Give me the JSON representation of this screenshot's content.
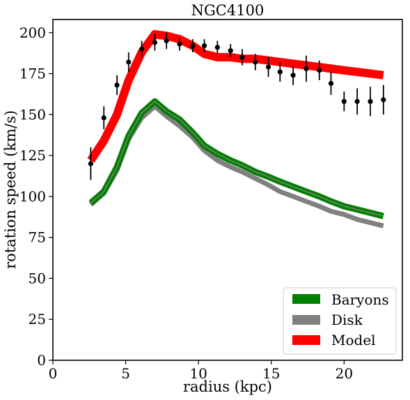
{
  "chart_data": {
    "type": "line",
    "title": "NGC4100",
    "xlabel": "radius (kpc)",
    "ylabel": "rotation speed (km/s)",
    "xlim": [
      0,
      24
    ],
    "ylim": [
      0,
      208
    ],
    "xticks": [
      0,
      5,
      10,
      15,
      20
    ],
    "yticks": [
      0,
      25,
      50,
      75,
      100,
      125,
      150,
      175,
      200
    ],
    "grid": false,
    "legend_position": "bottom-right",
    "observed": {
      "x": [
        2.6,
        3.5,
        4.4,
        5.2,
        6.1,
        7.0,
        7.8,
        8.7,
        9.6,
        10.4,
        11.3,
        12.2,
        13.0,
        13.9,
        14.8,
        15.6,
        16.5,
        17.4,
        18.3,
        19.1,
        20.0,
        20.9,
        21.8,
        22.7
      ],
      "y": [
        120,
        148,
        168,
        182,
        190,
        194,
        195,
        193,
        192,
        192,
        191,
        189,
        185,
        182,
        179,
        176,
        174,
        178,
        177,
        169,
        158,
        158,
        158,
        159
      ],
      "err": [
        10,
        7,
        6,
        6,
        5,
        5,
        5,
        4,
        4,
        4,
        4,
        4,
        5,
        5,
        6,
        6,
        6,
        8,
        6,
        7,
        6,
        8,
        9,
        9
      ]
    },
    "series": [
      {
        "name": "Baryons",
        "color": "#008000",
        "x": [
          2.6,
          3.5,
          4.4,
          5.2,
          6.1,
          7.0,
          7.8,
          8.7,
          9.6,
          10.4,
          11.3,
          12.2,
          13.0,
          13.9,
          14.8,
          15.6,
          16.5,
          17.4,
          18.3,
          19.1,
          20.0,
          20.9,
          21.8,
          22.7
        ],
        "y": [
          96,
          103,
          118,
          137,
          151,
          158,
          152,
          147,
          139,
          131,
          126,
          122,
          119,
          115,
          112,
          109,
          106,
          103,
          100,
          97,
          94,
          92,
          90,
          88
        ]
      },
      {
        "name": "Disk",
        "color": "#808080",
        "x": [
          2.6,
          3.5,
          4.4,
          5.2,
          6.1,
          7.0,
          7.8,
          8.7,
          9.6,
          10.4,
          11.3,
          12.2,
          13.0,
          13.9,
          14.8,
          15.6,
          16.5,
          17.4,
          18.3,
          19.1,
          20.0,
          20.9,
          21.8,
          22.7
        ],
        "y": [
          95,
          102,
          116,
          135,
          148,
          155,
          149,
          143,
          136,
          128,
          122,
          118,
          115,
          111,
          107,
          103,
          100,
          97,
          94,
          91,
          89,
          86,
          84,
          82
        ]
      },
      {
        "name": "Model",
        "color": "#ff0000",
        "x": [
          2.6,
          3.5,
          4.4,
          5.2,
          6.1,
          7.0,
          7.8,
          8.7,
          9.6,
          10.4,
          11.3,
          12.2,
          13.0,
          13.9,
          14.8,
          15.6,
          16.5,
          17.4,
          18.3,
          19.1,
          20.0,
          20.9,
          21.8,
          22.7
        ],
        "y": [
          122,
          134,
          150,
          171,
          188,
          199,
          198,
          196,
          192,
          187,
          185,
          185,
          184,
          184,
          183,
          182,
          181,
          180,
          179,
          178,
          177,
          176,
          175,
          174
        ]
      }
    ]
  }
}
